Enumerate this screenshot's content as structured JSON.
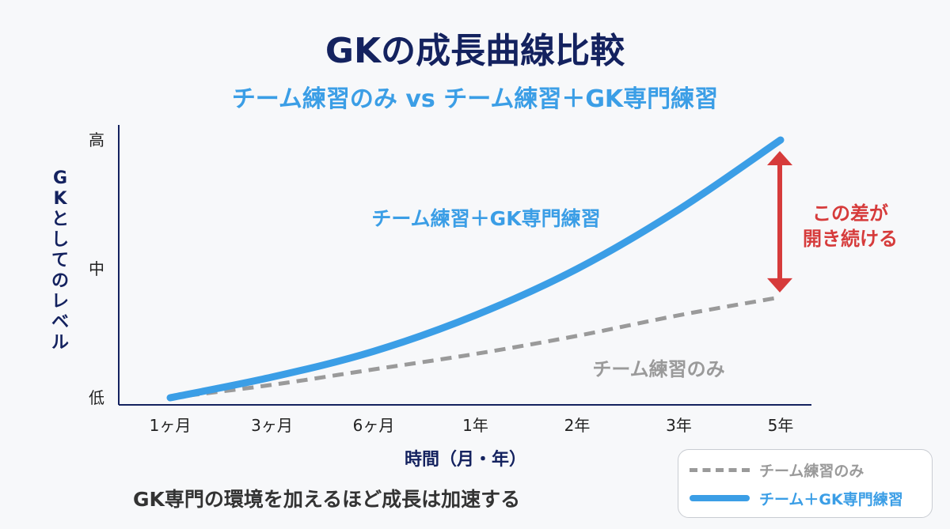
{
  "title": "GKの成長曲線比較",
  "subtitle": "チーム練習のみ vs チーム練習＋GK専門練習",
  "footnote": "GK専門の環境を加えるほど成長は加速する",
  "annotation": {
    "line1": "この差が",
    "line2": "開き続ける",
    "color": "#d63b3b"
  },
  "colors": {
    "title": "#14225f",
    "accent_blue": "#3b9ee6",
    "gray": "#9a9a9a",
    "axis": "#14225f"
  },
  "legend": {
    "items": [
      {
        "label": "チーム練習のみ",
        "style": "dashed",
        "color": "#9a9a9a"
      },
      {
        "label": "チーム＋GK専門練習",
        "style": "solid",
        "color": "#3b9ee6"
      }
    ]
  },
  "chart_data": {
    "type": "line",
    "xlabel": "時間（月・年）",
    "ylabel": "GKとしてのレベル",
    "categories": [
      "1ヶ月",
      "3ヶ月",
      "6ヶ月",
      "1年",
      "2年",
      "3年",
      "5年"
    ],
    "y_tick_labels": [
      "低",
      "中",
      "高"
    ],
    "ylim": [
      0,
      1
    ],
    "grid": false,
    "series": [
      {
        "name": "チーム練習＋GK専門練習",
        "style": "solid",
        "color": "#3b9ee6",
        "values": [
          0.0,
          0.08,
          0.18,
          0.32,
          0.5,
          0.73,
          1.0
        ]
      },
      {
        "name": "チーム練習のみ",
        "style": "dashed",
        "color": "#9a9a9a",
        "values": [
          0.0,
          0.05,
          0.11,
          0.17,
          0.24,
          0.32,
          0.39
        ]
      }
    ]
  }
}
